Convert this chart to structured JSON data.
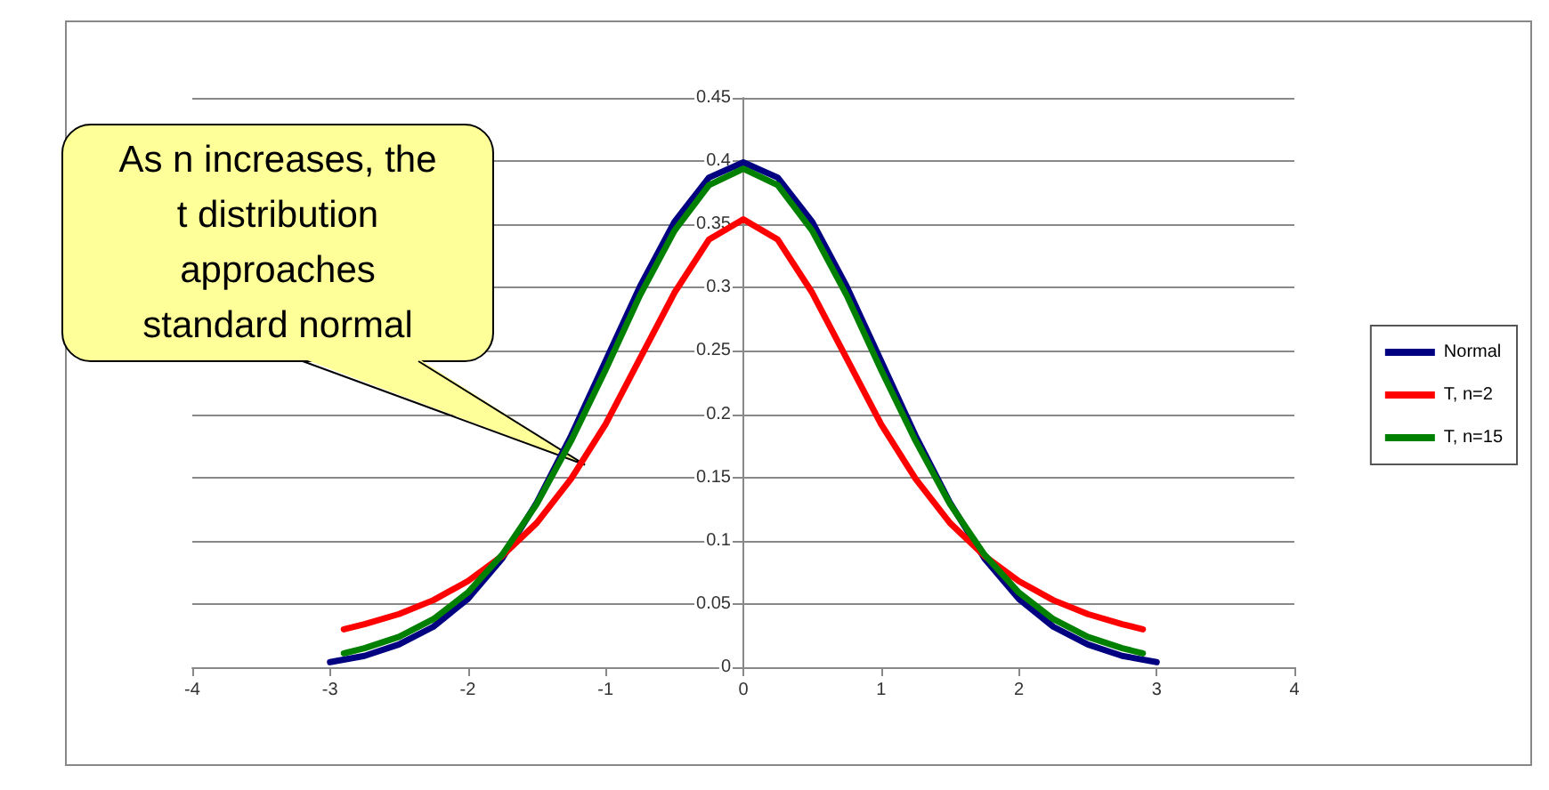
{
  "chart_data": {
    "type": "line",
    "xlim": [
      -4,
      4
    ],
    "xticks": [
      -4,
      -3,
      -2,
      -1,
      0,
      1,
      2,
      3,
      4
    ],
    "ylim": [
      0,
      0.45
    ],
    "yticks": [
      0,
      0.05,
      0.1,
      0.15,
      0.2,
      0.25,
      0.3,
      0.35,
      0.4,
      0.45
    ],
    "grid": "y",
    "legend": "right",
    "marker": "none",
    "line_style": "solid",
    "series": [
      {
        "name": "Normal",
        "color": "#000080",
        "x": [
          -3,
          -2.75,
          -2.5,
          -2.25,
          -2,
          -1.75,
          -1.5,
          -1.25,
          -1,
          -0.75,
          -0.5,
          -0.25,
          0,
          0.25,
          0.5,
          0.75,
          1,
          1.25,
          1.5,
          1.75,
          2,
          2.25,
          2.5,
          2.75,
          3
        ],
        "values": [
          0.004,
          0.009,
          0.018,
          0.032,
          0.054,
          0.086,
          0.13,
          0.183,
          0.242,
          0.301,
          0.352,
          0.387,
          0.399,
          0.387,
          0.352,
          0.301,
          0.242,
          0.183,
          0.13,
          0.086,
          0.054,
          0.032,
          0.018,
          0.009,
          0.004
        ]
      },
      {
        "name": "T, n=2",
        "color": "#ff0000",
        "x": [
          -2.9,
          -2.75,
          -2.5,
          -2.25,
          -2,
          -1.75,
          -1.5,
          -1.25,
          -1,
          -0.75,
          -0.5,
          -0.25,
          0,
          0.25,
          0.5,
          0.75,
          1,
          1.25,
          1.5,
          1.75,
          2,
          2.25,
          2.5,
          2.75,
          2.9
        ],
        "values": [
          0.03,
          0.034,
          0.042,
          0.053,
          0.068,
          0.088,
          0.114,
          0.149,
          0.192,
          0.244,
          0.296,
          0.338,
          0.354,
          0.338,
          0.296,
          0.244,
          0.192,
          0.149,
          0.114,
          0.088,
          0.068,
          0.053,
          0.042,
          0.034,
          0.03
        ]
      },
      {
        "name": "T, n=15",
        "color": "#008000",
        "x": [
          -2.9,
          -2.75,
          -2.5,
          -2.25,
          -2,
          -1.75,
          -1.5,
          -1.25,
          -1,
          -0.75,
          -0.5,
          -0.25,
          0,
          0.25,
          0.5,
          0.75,
          1,
          1.25,
          1.5,
          1.75,
          2,
          2.25,
          2.5,
          2.75,
          2.9
        ],
        "values": [
          0.011,
          0.015,
          0.024,
          0.038,
          0.059,
          0.089,
          0.129,
          0.179,
          0.235,
          0.294,
          0.345,
          0.381,
          0.394,
          0.381,
          0.345,
          0.294,
          0.235,
          0.179,
          0.129,
          0.089,
          0.059,
          0.038,
          0.024,
          0.015,
          0.011
        ]
      }
    ],
    "annotations": [
      {
        "text": "As n increases, the\nt distribution\napproaches\nstandard normal",
        "x": -1.15,
        "y": 0.16
      }
    ]
  }
}
